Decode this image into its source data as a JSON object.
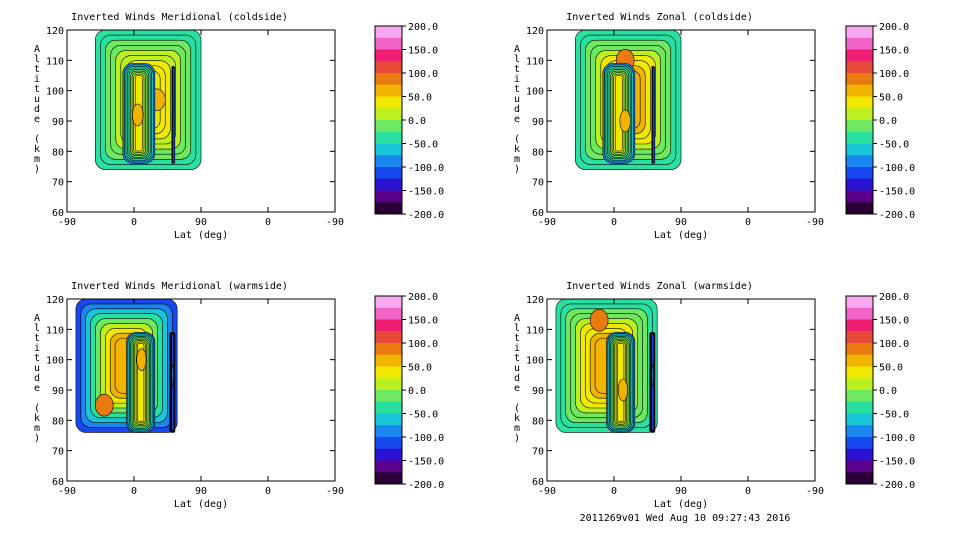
{
  "footer": "2011269v01 Wed Aug 10 09:27:43 2016",
  "colors": {
    "band_colors": [
      "#2a0036",
      "#5a008c",
      "#2a12d0",
      "#1848f0",
      "#1a86f0",
      "#18c6d8",
      "#2ae0a0",
      "#6ee860",
      "#bcf020",
      "#f0e800",
      "#f0b400",
      "#e87a10",
      "#e84a3a",
      "#f01e70",
      "#f064c8",
      "#f8a8f0"
    ]
  },
  "colorbar": {
    "tick_labels": [
      "200.0",
      "150.0",
      "100.0",
      "50.0",
      "0.0",
      "-50.0",
      "-100.0",
      "-150.0",
      "-200.0"
    ]
  },
  "chart_data": [
    {
      "type": "heatmap",
      "title": "Inverted Winds Meridional (coldside)",
      "xlabel": "Lat (deg)",
      "ylabel": "Altitude (km)",
      "xticks": [
        "-90",
        "0",
        "90",
        "0",
        "-90"
      ],
      "yticks": [
        60,
        70,
        80,
        90,
        100,
        110,
        120
      ],
      "ylim": [
        60,
        120
      ],
      "color_range": [
        -200,
        200
      ],
      "regions": [
        {
          "x_range": [
            -52,
            90
          ],
          "y_range": [
            74,
            120
          ],
          "base": 10,
          "peak": 40,
          "hot_spot": [
            30,
            97
          ]
        },
        {
          "x_range": [
            -15,
            28
          ],
          "y_range": [
            76,
            109
          ],
          "base": -20,
          "peak": 30,
          "hot_spot": [
            5,
            92
          ]
        },
        {
          "x_range": [
            51,
            54
          ],
          "y_range": [
            76,
            108
          ],
          "base": -150,
          "peak": -120,
          "hot_spot": [
            52,
            95
          ]
        }
      ]
    },
    {
      "type": "heatmap",
      "title": "Inverted Winds Zonal (coldside)",
      "xlabel": "Lat (deg)",
      "ylabel": "Altitude (km)",
      "xticks": [
        "-90",
        "0",
        "90",
        "0",
        "-90"
      ],
      "yticks": [
        60,
        70,
        80,
        90,
        100,
        110,
        120
      ],
      "ylim": [
        60,
        120
      ],
      "color_range": [
        -200,
        200
      ],
      "regions": [
        {
          "x_range": [
            -52,
            90
          ],
          "y_range": [
            74,
            120
          ],
          "base": 10,
          "peak": 60,
          "hot_spot": [
            15,
            110
          ]
        },
        {
          "x_range": [
            -15,
            28
          ],
          "y_range": [
            76,
            109
          ],
          "base": -20,
          "peak": 30,
          "hot_spot": [
            15,
            90
          ]
        },
        {
          "x_range": [
            51,
            54
          ],
          "y_range": [
            76,
            108
          ],
          "base": -150,
          "peak": -120,
          "hot_spot": [
            52,
            100
          ]
        }
      ]
    },
    {
      "type": "heatmap",
      "title": "Inverted Winds Meridional (warmside)",
      "xlabel": "Lat (deg)",
      "ylabel": "Altitude (km)",
      "xticks": [
        "-90",
        "0",
        "90",
        "0",
        "-90"
      ],
      "yticks": [
        60,
        70,
        80,
        90,
        100,
        110,
        120
      ],
      "ylim": [
        60,
        120
      ],
      "color_range": [
        -200,
        200
      ],
      "regions": [
        {
          "x_range": [
            -78,
            58
          ],
          "y_range": [
            76,
            120
          ],
          "base": -60,
          "peak": 60,
          "hot_spot": [
            -40,
            85
          ]
        },
        {
          "x_range": [
            -10,
            28
          ],
          "y_range": [
            76,
            109
          ],
          "base": -20,
          "peak": 40,
          "hot_spot": [
            10,
            100
          ]
        },
        {
          "x_range": [
            48,
            55
          ],
          "y_range": [
            76,
            109
          ],
          "base": -150,
          "peak": -120,
          "hot_spot": [
            52,
            95
          ]
        }
      ]
    },
    {
      "type": "heatmap",
      "title": "Inverted Winds Zonal (warmside)",
      "xlabel": "Lat (deg)",
      "ylabel": "Altitude (km)",
      "xticks": [
        "-90",
        "0",
        "90",
        "0",
        "-90"
      ],
      "yticks": [
        60,
        70,
        80,
        90,
        100,
        110,
        120
      ],
      "ylim": [
        60,
        120
      ],
      "color_range": [
        -200,
        200
      ],
      "regions": [
        {
          "x_range": [
            -78,
            58
          ],
          "y_range": [
            76,
            120
          ],
          "base": 10,
          "peak": 60,
          "hot_spot": [
            -20,
            113
          ]
        },
        {
          "x_range": [
            -10,
            28
          ],
          "y_range": [
            76,
            109
          ],
          "base": -20,
          "peak": 40,
          "hot_spot": [
            12,
            90
          ]
        },
        {
          "x_range": [
            48,
            55
          ],
          "y_range": [
            76,
            109
          ],
          "base": -150,
          "peak": -120,
          "hot_spot": [
            52,
            95
          ]
        }
      ]
    }
  ]
}
